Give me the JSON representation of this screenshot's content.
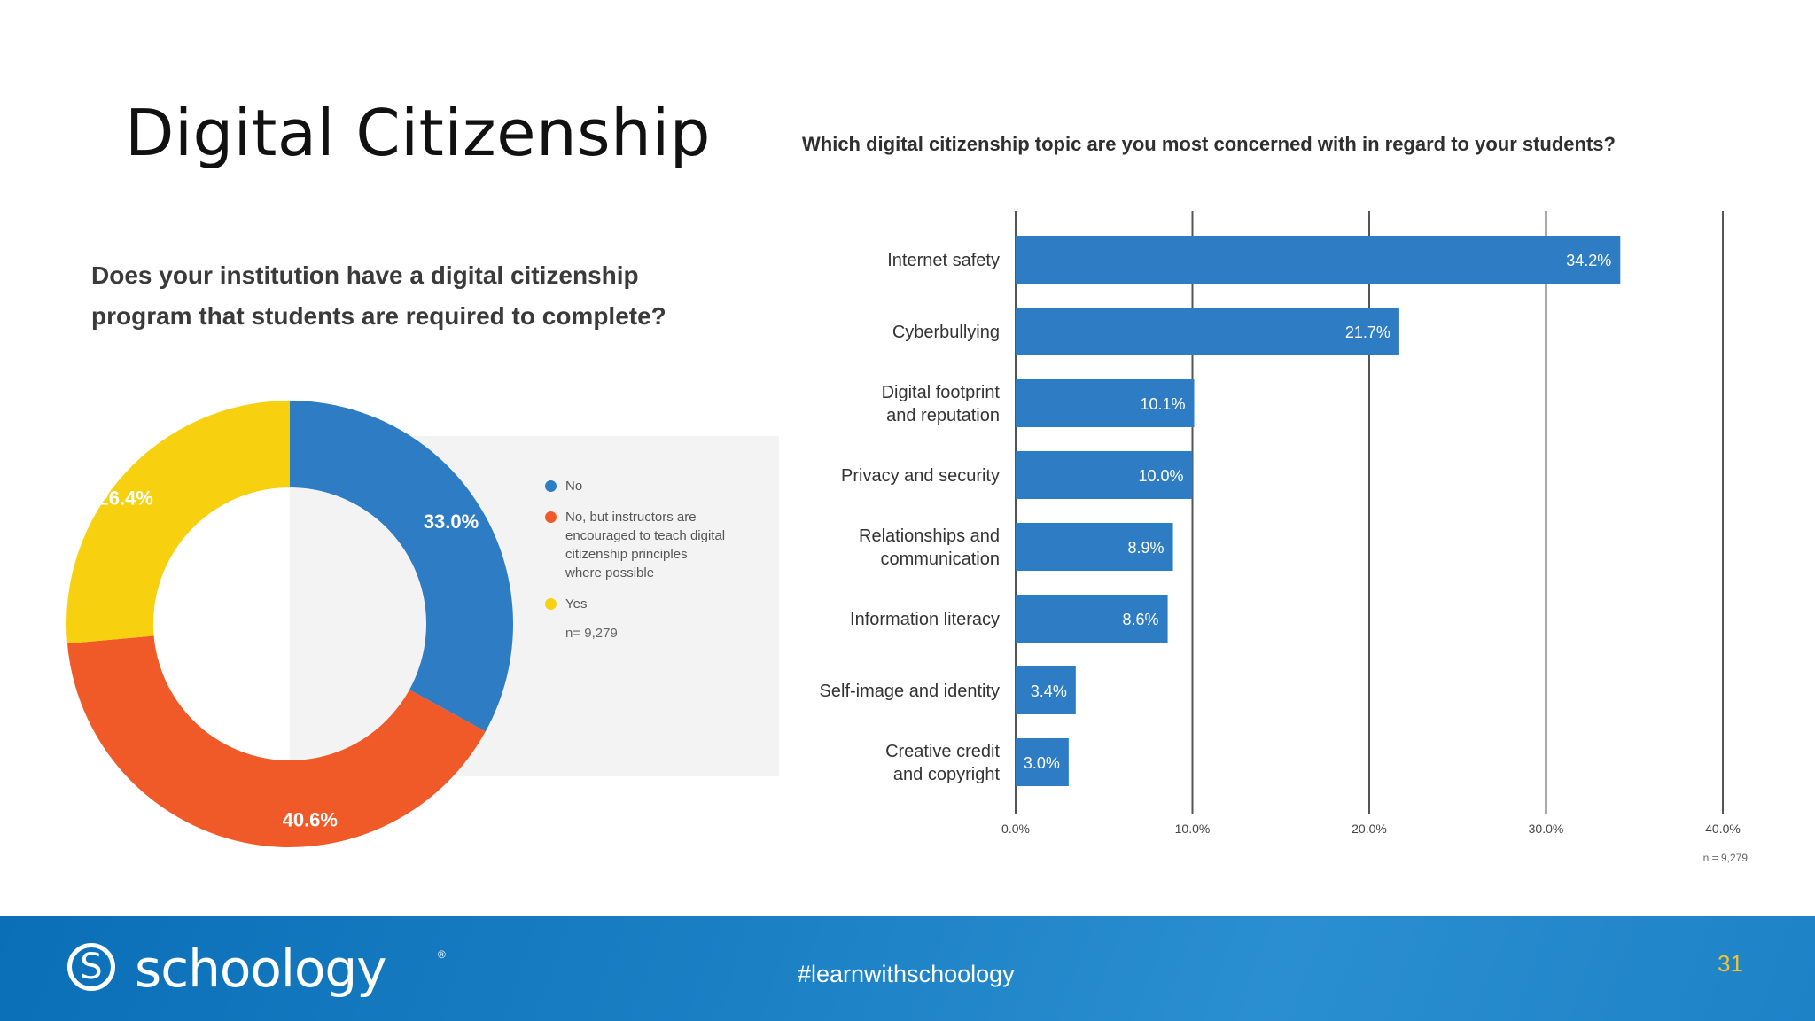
{
  "slide": {
    "title": "Digital Citizenship",
    "page_number": "31",
    "hashtag": "#learnwithschoology",
    "brand": {
      "name": "schoology",
      "icon": "schoology-s-icon",
      "color": "#1b7fc4"
    }
  },
  "chart_data": [
    {
      "type": "pie",
      "title": "Does your institution have a digital citizenship program that students are required to complete?",
      "title_lines": [
        "Does your institution have a digital citizenship",
        "program that students are required to complete?"
      ],
      "donut": true,
      "slices": [
        {
          "label": "No",
          "value": 33.0,
          "display": "33.0%",
          "color": "#2d7cc4"
        },
        {
          "label": "No, but instructors are encouraged to teach digital citizenship principles where possible",
          "value": 40.6,
          "display": "40.6%",
          "color": "#f05a28"
        },
        {
          "label": "Yes",
          "value": 26.4,
          "display": "26.4%",
          "color": "#f7d10f"
        }
      ],
      "legend_lines": [
        [
          "No"
        ],
        [
          "No, but instructors are",
          "encouraged to teach digital",
          "citizenship principles",
          "where possible"
        ],
        [
          "Yes"
        ]
      ],
      "legend_position": "right",
      "note": "n= 9,279"
    },
    {
      "type": "bar",
      "orientation": "horizontal",
      "title": "Which digital citizenship topic are you most concerned with in regard to your students?",
      "categories": [
        "Internet safety",
        "Cyberbullying",
        "Digital footprint and reputation",
        "Privacy and security",
        "Relationships and communication",
        "Information literacy",
        "Self-image and identity",
        "Creative credit and copyright"
      ],
      "category_lines": [
        [
          "Internet safety"
        ],
        [
          "Cyberbullying"
        ],
        [
          "Digital footprint",
          "and reputation"
        ],
        [
          "Privacy and security"
        ],
        [
          "Relationships and",
          "communication"
        ],
        [
          "Information literacy"
        ],
        [
          "Self-image and identity"
        ],
        [
          "Creative credit",
          "and copyright"
        ]
      ],
      "values": [
        34.2,
        21.7,
        10.1,
        10.0,
        8.9,
        8.6,
        3.4,
        3.0
      ],
      "value_labels": [
        "34.2%",
        "21.7%",
        "10.1%",
        "10.0%",
        "8.9%",
        "8.6%",
        "3.4%",
        "3.0%"
      ],
      "xlim": [
        0,
        40
      ],
      "xticks": [
        0,
        10,
        20,
        30,
        40
      ],
      "xtick_labels": [
        "0.0%",
        "10.0%",
        "20.0%",
        "30.0%",
        "40.0%"
      ],
      "grid": true,
      "bar_color": "#2d7cc4",
      "note": "n = 9,279"
    }
  ]
}
